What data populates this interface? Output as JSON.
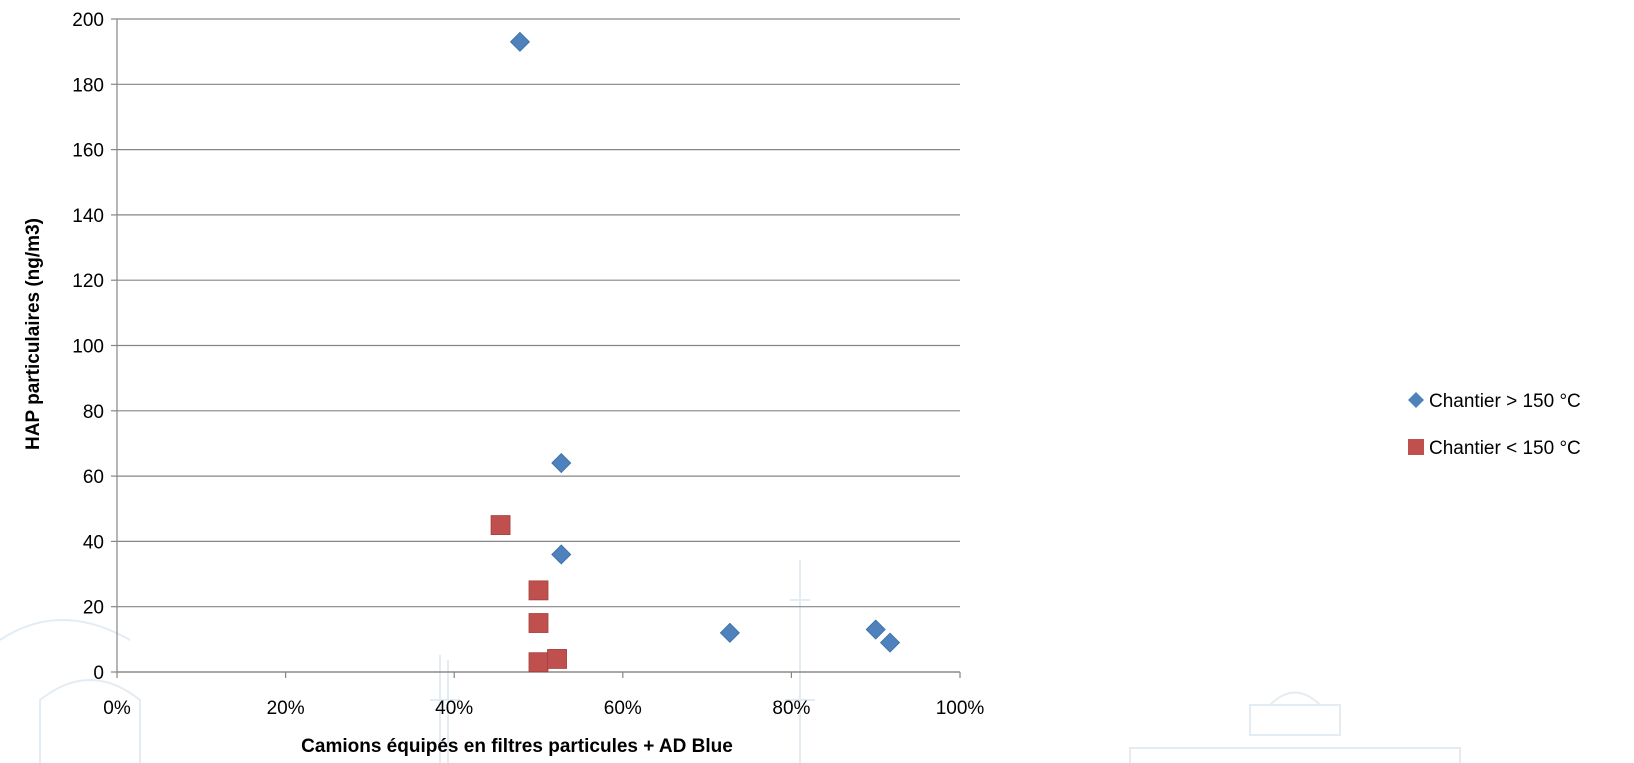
{
  "chart_data": {
    "type": "scatter",
    "title": "",
    "xlabel": "Camions équipés en filtres particules + AD Blue",
    "ylabel": "HAP particulaires (ng/m3)",
    "xlim": [
      0,
      1
    ],
    "ylim": [
      0,
      200
    ],
    "x_ticks": [
      {
        "value": 0,
        "label": "0%"
      },
      {
        "value": 0.2,
        "label": "20%"
      },
      {
        "value": 0.4,
        "label": "40%"
      },
      {
        "value": 0.6,
        "label": "60%"
      },
      {
        "value": 0.8,
        "label": "80%"
      },
      {
        "value": 1.0,
        "label": "100%"
      }
    ],
    "y_ticks": [
      {
        "value": 0,
        "label": "0"
      },
      {
        "value": 20,
        "label": "20"
      },
      {
        "value": 40,
        "label": "40"
      },
      {
        "value": 60,
        "label": "60"
      },
      {
        "value": 80,
        "label": "80"
      },
      {
        "value": 100,
        "label": "100"
      },
      {
        "value": 120,
        "label": "120"
      },
      {
        "value": 140,
        "label": "140"
      },
      {
        "value": 160,
        "label": "160"
      },
      {
        "value": 180,
        "label": "180"
      },
      {
        "value": 200,
        "label": "200"
      }
    ],
    "grid": "horizontal",
    "legend_position": "right",
    "series": [
      {
        "name": "Chantier > 150 °C",
        "marker": "diamond",
        "color": "#4F81BD",
        "points": [
          {
            "x": 0.478,
            "y": 193
          },
          {
            "x": 0.527,
            "y": 64
          },
          {
            "x": 0.527,
            "y": 36
          },
          {
            "x": 0.727,
            "y": 12
          },
          {
            "x": 0.9,
            "y": 13
          },
          {
            "x": 0.917,
            "y": 9
          }
        ]
      },
      {
        "name": "Chantier < 150 °C",
        "marker": "square",
        "color": "#C0504D",
        "points": [
          {
            "x": 0.455,
            "y": 45
          },
          {
            "x": 0.5,
            "y": 25
          },
          {
            "x": 0.5,
            "y": 15
          },
          {
            "x": 0.5,
            "y": 3
          },
          {
            "x": 0.522,
            "y": 4
          }
        ]
      }
    ]
  }
}
